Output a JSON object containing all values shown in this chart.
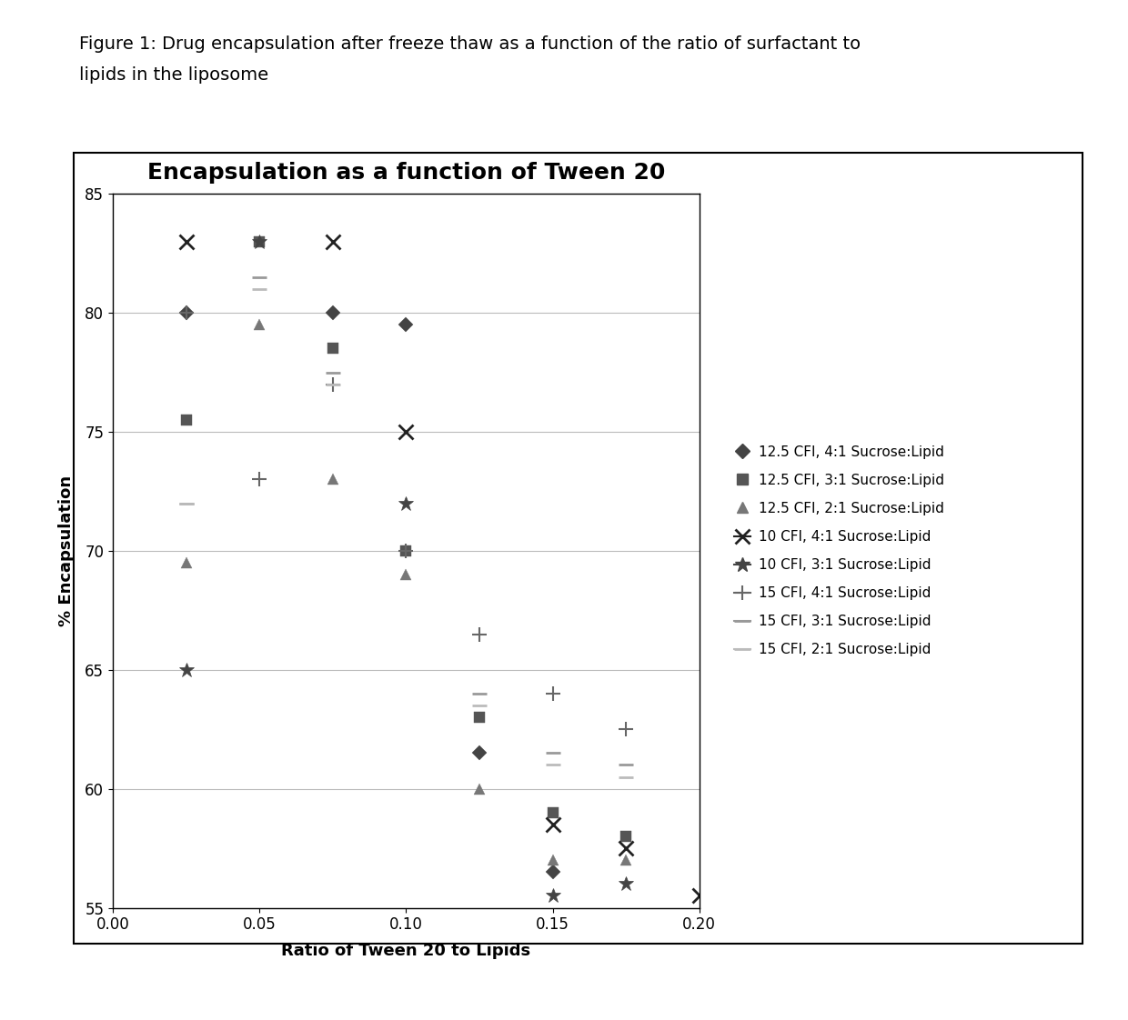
{
  "title": "Encapsulation as a function of Tween 20",
  "xlabel": "Ratio of Tween 20 to Lipids",
  "ylabel": "% Encapsulation",
  "figure_label_line1": "Figure 1: Drug encapsulation after freeze thaw as a function of the ratio of surfactant to",
  "figure_label_line2": "lipids in the liposome",
  "xlim": [
    0.0,
    0.2
  ],
  "ylim": [
    55,
    85
  ],
  "xticks": [
    0.0,
    0.05,
    0.1,
    0.15,
    0.2
  ],
  "yticks": [
    55,
    60,
    65,
    70,
    75,
    80,
    85
  ],
  "series": [
    {
      "label": "12.5 CFI, 4:1 Sucrose:Lipid",
      "marker": "D",
      "color": "#444444",
      "markersize": 8,
      "x": [
        0.025,
        0.075,
        0.1,
        0.125,
        0.15
      ],
      "y": [
        80.0,
        80.0,
        79.5,
        61.5,
        56.5
      ]
    },
    {
      "label": "12.5 CFI, 3:1 Sucrose:Lipid",
      "marker": "s",
      "color": "#555555",
      "markersize": 9,
      "x": [
        0.025,
        0.05,
        0.075,
        0.1,
        0.125,
        0.15,
        0.175
      ],
      "y": [
        75.5,
        83.0,
        78.5,
        70.0,
        63.0,
        59.0,
        58.0
      ]
    },
    {
      "label": "12.5 CFI, 2:1 Sucrose:Lipid",
      "marker": "^",
      "color": "#777777",
      "markersize": 9,
      "x": [
        0.025,
        0.05,
        0.075,
        0.1,
        0.125,
        0.15,
        0.175
      ],
      "y": [
        69.5,
        79.5,
        73.0,
        69.0,
        60.0,
        57.0,
        57.0
      ]
    },
    {
      "label": "10 CFI, 4:1 Sucrose:Lipid",
      "marker": "x",
      "color": "#222222",
      "markersize": 11,
      "x": [
        0.025,
        0.075,
        0.1,
        0.15,
        0.175,
        0.2
      ],
      "y": [
        83.0,
        83.0,
        75.0,
        58.5,
        57.5,
        55.5
      ]
    },
    {
      "label": "10 CFI, 3:1 Sucrose:Lipid",
      "marker": "*",
      "color": "#444444",
      "markersize": 12,
      "x": [
        0.025,
        0.05,
        0.1,
        0.15,
        0.175
      ],
      "y": [
        65.0,
        83.0,
        72.0,
        55.5,
        56.0
      ]
    },
    {
      "label": "15 CFI, 4:1 Sucrose:Lipid",
      "marker": "+",
      "color": "#666666",
      "markersize": 11,
      "x": [
        0.025,
        0.05,
        0.075,
        0.1,
        0.125,
        0.15,
        0.175
      ],
      "y": [
        80.0,
        73.0,
        77.0,
        70.0,
        66.5,
        64.0,
        62.5
      ]
    },
    {
      "label": "15 CFI, 3:1 Sucrose:Lipid",
      "marker": "dash",
      "color": "#999999",
      "markersize": 9,
      "x": [
        0.025,
        0.05,
        0.075,
        0.125,
        0.15,
        0.175
      ],
      "y": [
        72.0,
        81.5,
        77.5,
        64.0,
        61.5,
        61.0
      ]
    },
    {
      "label": "15 CFI, 2:1 Sucrose:Lipid",
      "marker": "dash2",
      "color": "#bbbbbb",
      "markersize": 9,
      "x": [
        0.025,
        0.05,
        0.075,
        0.125,
        0.15,
        0.175
      ],
      "y": [
        72.0,
        81.0,
        77.0,
        63.5,
        61.0,
        60.5
      ]
    }
  ],
  "background_color": "#ffffff",
  "plot_bg_color": "#ffffff",
  "border_color": "#000000",
  "grid_color": "#bbbbbb",
  "title_fontsize": 18,
  "axis_label_fontsize": 13,
  "tick_fontsize": 12,
  "legend_fontsize": 11
}
